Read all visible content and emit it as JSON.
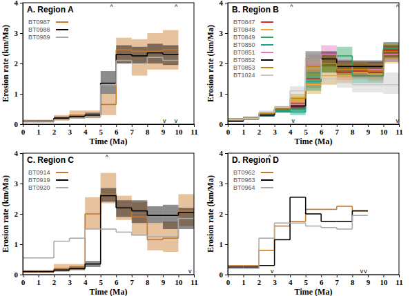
{
  "chart_data": [
    {
      "type": "line",
      "title": "A. Region A",
      "x_label": "Time (Ma)",
      "y_label": "Erosion rate (km/Ma)",
      "xlim": [
        0,
        11
      ],
      "xticks": [
        0,
        1,
        2,
        3,
        4,
        5,
        6,
        7,
        8,
        9,
        10,
        11
      ],
      "ylim": [
        0,
        4
      ],
      "yticks": [
        0,
        1,
        2,
        3,
        4
      ],
      "line_style": "step",
      "legend": "upper left",
      "bins": [
        0,
        1,
        2,
        3,
        4,
        5,
        6,
        7,
        8,
        9,
        10
      ],
      "series": [
        {
          "name": "BT0987",
          "color": "#c8782a",
          "values": [
            0.1,
            0.1,
            0.2,
            0.3,
            0.3,
            0.65,
            2.45,
            2.4,
            2.4,
            2.45
          ],
          "lower": [
            0.05,
            0.05,
            0.12,
            0.2,
            0.2,
            0.3,
            2.0,
            1.6,
            1.8,
            1.8
          ],
          "upper": [
            0.15,
            0.15,
            0.3,
            0.45,
            0.45,
            1.0,
            2.85,
            2.8,
            3.0,
            3.1
          ]
        },
        {
          "name": "BT0988",
          "color": "#000000",
          "values": [
            0.1,
            0.1,
            0.2,
            0.25,
            0.3,
            1.35,
            2.3,
            2.25,
            2.35,
            2.3
          ],
          "lower": [
            0.07,
            0.07,
            0.15,
            0.2,
            0.22,
            1.0,
            2.0,
            2.0,
            2.0,
            1.95
          ],
          "upper": [
            0.13,
            0.13,
            0.25,
            0.32,
            0.38,
            1.75,
            2.6,
            2.55,
            2.65,
            2.6
          ]
        },
        {
          "name": "BT0989",
          "color": "#aaaaaa",
          "values": [
            0.1,
            0.1,
            0.15,
            0.2,
            0.25,
            1.3,
            2.1,
            2.0,
            2.2,
            2.1
          ]
        }
      ],
      "annotations": [
        {
          "text": "^",
          "x": 5.7,
          "y": 4
        },
        {
          "text": "^",
          "x": 9.85,
          "y": 4
        },
        {
          "text": "v",
          "x": 9.1,
          "y": 0
        },
        {
          "text": "v",
          "x": 9.85,
          "y": 0
        }
      ]
    },
    {
      "type": "line",
      "title": "B. Region B",
      "x_label": "Time (Ma)",
      "y_label": "Erosion rate (km/Ma)",
      "xlim": [
        0,
        11
      ],
      "xticks": [
        0,
        1,
        2,
        3,
        4,
        5,
        6,
        7,
        8,
        9,
        10,
        11
      ],
      "ylim": [
        0,
        4
      ],
      "yticks": [
        0,
        1,
        2,
        3,
        4
      ],
      "line_style": "step",
      "legend": "upper left",
      "bins": [
        0,
        1,
        2,
        3,
        4,
        5,
        6,
        7,
        8,
        9,
        10,
        11
      ],
      "series": [
        {
          "name": "BT0847",
          "color": "#d62728",
          "values": [
            0.15,
            0.2,
            0.35,
            0.45,
            0.6,
            1.5,
            2.0,
            1.7,
            1.75,
            1.7,
            2.45
          ],
          "lower": [
            0.1,
            0.15,
            0.3,
            0.38,
            0.45,
            1.2,
            1.7,
            1.45,
            1.5,
            1.45,
            2.2
          ],
          "upper": [
            0.2,
            0.25,
            0.4,
            0.52,
            0.75,
            1.8,
            2.3,
            1.95,
            2.0,
            1.95,
            2.7
          ]
        },
        {
          "name": "BT0848",
          "color": "#f5a623",
          "values": [
            0.15,
            0.2,
            0.35,
            0.5,
            0.75,
            1.3,
            1.6,
            1.6,
            1.7,
            1.65,
            2.3
          ],
          "lower": [
            0.1,
            0.15,
            0.3,
            0.42,
            0.6,
            1.0,
            1.3,
            1.35,
            1.45,
            1.4,
            2.0
          ],
          "upper": [
            0.2,
            0.25,
            0.4,
            0.58,
            0.9,
            1.6,
            1.9,
            1.85,
            1.95,
            1.9,
            2.55
          ]
        },
        {
          "name": "BT0849",
          "color": "#2ca25f",
          "values": [
            0.15,
            0.2,
            0.3,
            0.45,
            0.5,
            1.7,
            2.0,
            2.25,
            1.8,
            1.8,
            2.3
          ],
          "lower": [
            0.1,
            0.15,
            0.25,
            0.38,
            0.4,
            1.4,
            1.7,
            2.0,
            1.55,
            1.55,
            2.05
          ],
          "upper": [
            0.2,
            0.25,
            0.35,
            0.52,
            0.6,
            2.0,
            2.3,
            2.55,
            2.05,
            2.05,
            2.6
          ]
        },
        {
          "name": "BT0850",
          "color": "#17a589",
          "values": [
            0.15,
            0.2,
            0.3,
            0.45,
            0.4,
            1.4,
            2.0,
            1.8,
            1.6,
            1.6,
            2.5
          ],
          "lower": [
            0.1,
            0.15,
            0.25,
            0.38,
            0.3,
            1.1,
            1.7,
            1.55,
            1.35,
            1.35,
            2.25
          ],
          "upper": [
            0.2,
            0.25,
            0.35,
            0.52,
            0.5,
            1.7,
            2.3,
            2.05,
            1.85,
            1.85,
            2.7
          ]
        },
        {
          "name": "BT0851",
          "color": "#e377c2",
          "values": [
            0.15,
            0.2,
            0.35,
            0.5,
            0.65,
            2.0,
            2.3,
            1.9,
            1.8,
            1.8,
            2.3
          ],
          "lower": [
            0.1,
            0.15,
            0.3,
            0.42,
            0.5,
            1.7,
            2.0,
            1.65,
            1.55,
            1.55,
            2.05
          ],
          "upper": [
            0.2,
            0.25,
            0.4,
            0.58,
            0.8,
            2.3,
            2.6,
            2.15,
            2.05,
            2.05,
            2.55
          ]
        },
        {
          "name": "BT0852",
          "color": "#000000",
          "values": [
            0.1,
            0.2,
            0.3,
            0.5,
            0.6,
            2.15,
            2.15,
            1.9,
            1.9,
            1.9,
            2.4
          ],
          "lower": [
            0.07,
            0.15,
            0.25,
            0.42,
            0.5,
            1.9,
            1.9,
            1.7,
            1.7,
            1.7,
            2.2
          ],
          "upper": [
            0.13,
            0.25,
            0.35,
            0.58,
            0.7,
            2.4,
            2.4,
            2.1,
            2.1,
            2.1,
            2.6
          ]
        },
        {
          "name": "BT0853",
          "color": "#b8860b",
          "values": [
            0.15,
            0.2,
            0.35,
            0.5,
            0.85,
            1.9,
            2.0,
            1.8,
            1.8,
            1.75,
            2.4
          ],
          "lower": [
            0.1,
            0.15,
            0.3,
            0.42,
            0.7,
            1.6,
            1.7,
            1.55,
            1.55,
            1.5,
            2.15
          ],
          "upper": [
            0.2,
            0.25,
            0.4,
            0.58,
            1.0,
            2.2,
            2.3,
            2.05,
            2.05,
            2.0,
            2.65
          ]
        },
        {
          "name": "BT1024",
          "color": "#c8c8c8",
          "values": [
            0.15,
            0.2,
            0.4,
            0.55,
            1.1,
            2.15,
            1.5,
            1.4,
            1.3,
            1.3,
            1.3
          ],
          "lower": [
            0.1,
            0.15,
            0.35,
            0.5,
            0.95,
            1.9,
            1.3,
            1.2,
            1.05,
            1.05,
            1.0
          ],
          "upper": [
            0.2,
            0.25,
            0.45,
            0.6,
            1.25,
            2.4,
            1.7,
            1.6,
            1.55,
            1.55,
            1.7
          ]
        }
      ],
      "annotations": [
        {
          "text": "^",
          "x": 4.1,
          "y": 4
        },
        {
          "text": "v",
          "x": 4.2,
          "y": 0
        },
        {
          "text": "^",
          "x": 10.9,
          "y": 4
        },
        {
          "text": "v",
          "x": 10.9,
          "y": 0
        }
      ]
    },
    {
      "type": "line",
      "title": "C. Region C",
      "x_label": "Time (Ma)",
      "y_label": "Erosion rate (km/Ma)",
      "xlim": [
        0,
        11
      ],
      "xticks": [
        0,
        1,
        2,
        3,
        4,
        5,
        6,
        7,
        8,
        9,
        10,
        11
      ],
      "ylim": [
        0,
        4
      ],
      "yticks": [
        0,
        1,
        2,
        3,
        4
      ],
      "line_style": "step",
      "legend": "upper left",
      "bins": [
        0,
        1,
        2,
        3,
        4,
        5,
        6,
        7,
        8,
        9,
        10,
        11
      ],
      "series": [
        {
          "name": "BT0914",
          "color": "#c8782a",
          "values": [
            0.1,
            0.1,
            0.2,
            0.25,
            2.0,
            2.65,
            2.2,
            1.9,
            1.15,
            1.2,
            2.1
          ],
          "lower": [
            0.05,
            0.05,
            0.12,
            0.15,
            1.5,
            2.35,
            1.8,
            1.3,
            0.8,
            0.75,
            1.6
          ],
          "upper": [
            0.15,
            0.15,
            0.35,
            0.35,
            2.55,
            3.35,
            2.6,
            2.4,
            1.7,
            1.75,
            2.65
          ]
        },
        {
          "name": "BT0919",
          "color": "#000000",
          "values": [
            0.1,
            0.1,
            0.15,
            0.2,
            0.35,
            2.6,
            2.2,
            2.1,
            1.95,
            1.95,
            2.05
          ],
          "lower": [
            0.07,
            0.07,
            0.1,
            0.15,
            0.25,
            2.4,
            1.9,
            1.7,
            1.7,
            1.5,
            1.5
          ],
          "upper": [
            0.13,
            0.13,
            0.2,
            0.28,
            0.45,
            2.85,
            2.45,
            2.45,
            2.25,
            2.3,
            2.2
          ]
        },
        {
          "name": "BT0920",
          "color": "#aaaaaa",
          "values": [
            0.55,
            0.55,
            1.1,
            1.2,
            1.5,
            1.5,
            1.4,
            1.3,
            1.25,
            1.25,
            1.85
          ]
        }
      ],
      "annotations": [
        {
          "text": "^",
          "x": 5.4,
          "y": 4
        },
        {
          "text": "v",
          "x": 10.75,
          "y": 0
        }
      ]
    },
    {
      "type": "line",
      "title": "D. Region D",
      "x_label": "Time (Ma)",
      "y_label": "Erosion rate (km/Ma)",
      "xlim": [
        0,
        11
      ],
      "xticks": [
        0,
        1,
        2,
        3,
        4,
        5,
        6,
        7,
        8,
        9,
        10,
        11
      ],
      "ylim": [
        0,
        4
      ],
      "yticks": [
        0,
        1,
        2,
        3,
        4
      ],
      "line_style": "step",
      "legend": "upper left",
      "bins": [
        0,
        1,
        2,
        3,
        4,
        5,
        6,
        7,
        8,
        9
      ],
      "series": [
        {
          "name": "BT0962",
          "color": "#c8782a",
          "values": [
            0.3,
            0.3,
            0.8,
            1.6,
            1.75,
            2.15,
            2.15,
            2.25,
            2.1
          ]
        },
        {
          "name": "BT0963",
          "color": "#000000",
          "values": [
            0.25,
            0.25,
            0.3,
            1.15,
            2.55,
            2.0,
            1.75,
            1.75,
            2.1
          ]
        },
        {
          "name": "BT0964",
          "color": "#aaaaaa",
          "values": [
            0.2,
            0.2,
            1.2,
            1.7,
            1.7,
            1.6,
            1.55,
            1.5,
            1.95
          ]
        }
      ],
      "annotations": [
        {
          "text": "^",
          "x": 2.7,
          "y": 4
        },
        {
          "text": "v",
          "x": 2.85,
          "y": 0
        },
        {
          "text": "v",
          "x": 8.6,
          "y": 0
        },
        {
          "text": "v",
          "x": 8.85,
          "y": 0
        }
      ]
    }
  ]
}
